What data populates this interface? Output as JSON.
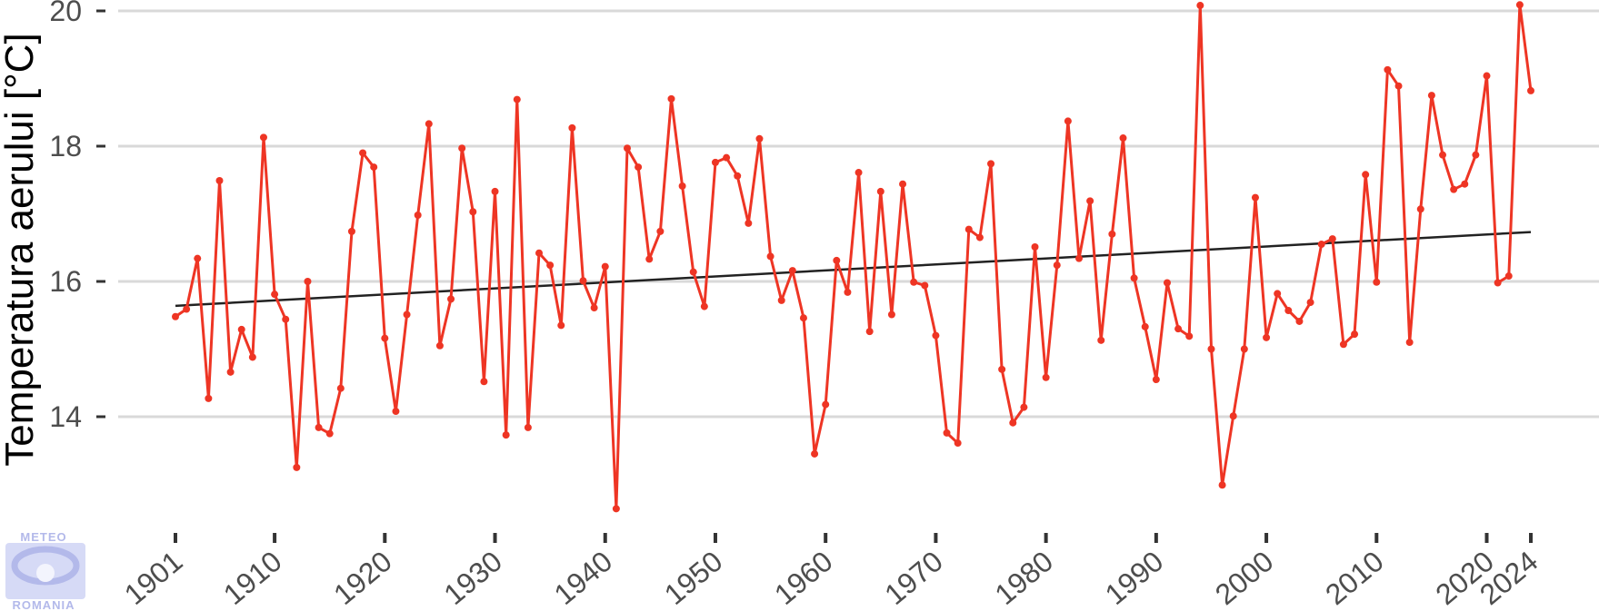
{
  "chart_data": {
    "type": "line",
    "title": "",
    "xlabel": "",
    "ylabel": "Temperatura aerului [°C]",
    "xlim": [
      1901,
      2024
    ],
    "ylim": [
      12.5,
      20.1
    ],
    "grid": "horizontal",
    "y_ticks": [
      14,
      16,
      18,
      20
    ],
    "x_ticks": [
      1901,
      1910,
      1920,
      1930,
      1940,
      1950,
      1960,
      1970,
      1980,
      1990,
      2000,
      2010,
      2020,
      2024
    ],
    "series": [
      {
        "type": "line",
        "color": "#ee3524",
        "x": [
          1901,
          1902,
          1903,
          1904,
          1905,
          1906,
          1907,
          1908,
          1909,
          1910,
          1911,
          1912,
          1913,
          1914,
          1915,
          1916,
          1917,
          1918,
          1919,
          1920,
          1921,
          1922,
          1923,
          1924,
          1925,
          1926,
          1927,
          1928,
          1929,
          1930,
          1931,
          1932,
          1933,
          1934,
          1935,
          1936,
          1937,
          1938,
          1939,
          1940,
          1941,
          1942,
          1943,
          1944,
          1945,
          1946,
          1947,
          1948,
          1949,
          1950,
          1951,
          1952,
          1953,
          1954,
          1955,
          1956,
          1957,
          1958,
          1959,
          1960,
          1961,
          1962,
          1963,
          1964,
          1965,
          1966,
          1967,
          1968,
          1969,
          1970,
          1971,
          1972,
          1973,
          1974,
          1975,
          1976,
          1977,
          1978,
          1979,
          1980,
          1981,
          1982,
          1983,
          1984,
          1985,
          1986,
          1987,
          1988,
          1989,
          1990,
          1991,
          1992,
          1993,
          1994,
          1995,
          1996,
          1997,
          1998,
          1999,
          2000,
          2001,
          2002,
          2003,
          2004,
          2005,
          2006,
          2007,
          2008,
          2009,
          2010,
          2011,
          2012,
          2013,
          2014,
          2015,
          2016,
          2017,
          2018,
          2019,
          2020,
          2021,
          2022,
          2023,
          2024
        ],
        "y": [
          15.48,
          15.59,
          16.34,
          14.27,
          17.49,
          14.66,
          15.29,
          14.88,
          18.13,
          15.81,
          15.44,
          13.25,
          16.0,
          13.84,
          13.75,
          14.42,
          16.74,
          17.9,
          17.69,
          15.16,
          14.08,
          15.51,
          16.98,
          18.33,
          15.05,
          15.74,
          17.97,
          17.03,
          14.52,
          17.33,
          13.73,
          18.69,
          13.84,
          16.42,
          16.24,
          15.35,
          18.27,
          16.01,
          15.61,
          16.22,
          12.64,
          17.97,
          17.69,
          16.33,
          16.74,
          18.7,
          17.41,
          16.14,
          15.63,
          17.76,
          17.83,
          17.56,
          16.86,
          18.11,
          16.37,
          15.72,
          16.16,
          15.46,
          13.45,
          14.18,
          16.31,
          15.84,
          17.61,
          15.26,
          17.33,
          15.51,
          17.44,
          15.99,
          15.94,
          15.2,
          13.76,
          13.61,
          16.77,
          16.65,
          17.74,
          14.7,
          13.91,
          14.14,
          16.51,
          14.58,
          16.24,
          18.37,
          16.34,
          17.19,
          15.13,
          16.7,
          18.12,
          16.05,
          15.33,
          14.55,
          15.98,
          15.3,
          15.19,
          20.08,
          15.0,
          12.99,
          14.01,
          15.0,
          17.24,
          15.17,
          15.82,
          15.57,
          15.41,
          15.69,
          16.55,
          16.63,
          15.07,
          15.22,
          17.58,
          15.99,
          19.13,
          18.89,
          15.1,
          17.07,
          18.75,
          17.87,
          17.36,
          17.44,
          17.87,
          19.04,
          15.98,
          16.08,
          20.09,
          18.82
        ]
      },
      {
        "type": "trend",
        "color": "#222222",
        "x": [
          1901,
          2024
        ],
        "y": [
          15.64,
          16.73
        ]
      }
    ]
  },
  "logo": {
    "top_text": "METEO",
    "bottom_text": "ROMANIA"
  }
}
